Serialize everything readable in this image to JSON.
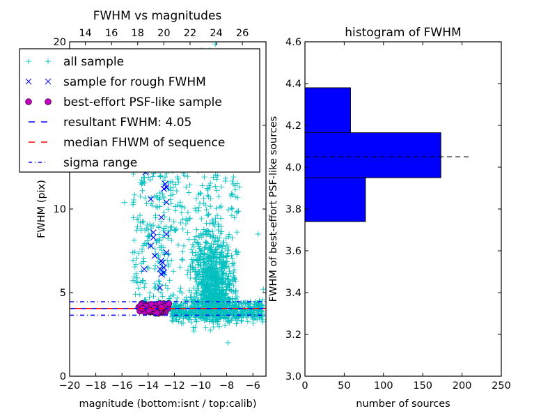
{
  "chart_data": [
    {
      "type": "scatter",
      "title": "FWHM vs magnitudes",
      "xlabel": "magnitude (bottom:isnt / top:calib)",
      "ylabel": "FWHM (pix)",
      "xlim": [
        -20,
        -5
      ],
      "ylim": [
        0,
        20
      ],
      "xticks": [
        "−20",
        "−18",
        "−16",
        "−14",
        "−12",
        "−10",
        "−8",
        "−6"
      ],
      "xtick_values": [
        -20,
        -18,
        -16,
        -14,
        -12,
        -10,
        -8,
        -6
      ],
      "yticks": [
        "0",
        "5",
        "10",
        "15",
        "20"
      ],
      "ytick_values": [
        0,
        5,
        10,
        15,
        20
      ],
      "top_axis": {
        "offset": 32.8,
        "ticks": [
          "14",
          "16",
          "18",
          "20",
          "22",
          "24",
          "26"
        ],
        "tick_values": [
          14,
          16,
          18,
          20,
          22,
          24,
          26
        ]
      },
      "grid": false,
      "legend": {
        "placement": "upper-left",
        "entries": [
          {
            "label": "all sample",
            "marker": "plus",
            "color": "#00bfbf"
          },
          {
            "label": "sample for rough FWHM",
            "marker": "x",
            "color": "#0000ff"
          },
          {
            "label": "best-effort PSF-like sample",
            "marker": "circle",
            "color": "#bf00bf"
          },
          {
            "label": "resultant FWHM: 4.05",
            "line": "dashed",
            "color": "#0000ff"
          },
          {
            "label": "median FHWM of sequence",
            "line": "dashed",
            "color": "#ff0000"
          },
          {
            "label": "sigma range",
            "line": "dashdot",
            "color": "#0000ff"
          }
        ]
      },
      "hlines": [
        {
          "name": "resultant-fwhm",
          "y": 4.05,
          "style": "dashed",
          "color": "#0000ff"
        },
        {
          "name": "median-fwhm",
          "y": 4.05,
          "style": "dashed",
          "color": "#ff0000"
        },
        {
          "name": "sigma-upper",
          "y": 4.45,
          "style": "dashdot",
          "color": "#0000ff"
        },
        {
          "name": "sigma-lower",
          "y": 3.65,
          "style": "dashdot",
          "color": "#0000ff"
        }
      ],
      "series": [
        {
          "name": "all sample",
          "color": "#00bfbf",
          "clusters": [
            {
              "x_range": [
                -15.2,
                -12.2
              ],
              "y_range": [
                4.5,
                13.5
              ],
              "count": 220
            },
            {
              "x_range": [
                -12.5,
                -7.0
              ],
              "y_range": [
                3.5,
                13.5
              ],
              "count": 260
            },
            {
              "x_range": [
                -11.0,
                -7.2
              ],
              "y_range": [
                3.2,
                9.5
              ],
              "count": 900
            },
            {
              "x_range": [
                -12.2,
                -5.2
              ],
              "y_range": [
                3.0,
                4.5
              ],
              "count": 500
            },
            {
              "x_range": [
                -10.0,
                -8.5
              ],
              "y_range": [
                13.5,
                20.0
              ],
              "count": 40
            }
          ],
          "outliers": [
            [
              -5.6,
              8.5
            ],
            [
              -7.9,
              2.0
            ],
            [
              -10.5,
              2.7
            ],
            [
              -9.6,
              2.9
            ],
            [
              -5.5,
              3.5
            ],
            [
              -6.4,
              4.4
            ],
            [
              -5.2,
              5.2
            ],
            [
              -15.8,
              10.4
            ],
            [
              -7.5,
              11.5
            ],
            [
              -9.3,
              19.5
            ],
            [
              -8.5,
              19.1
            ]
          ]
        },
        {
          "name": "sample for rough FWHM",
          "color": "#0000ff",
          "points": [
            [
              -14.2,
              12.2
            ],
            [
              -12.7,
              11.5
            ],
            [
              -12.6,
              11.3
            ],
            [
              -12.8,
              11.2
            ],
            [
              -13.8,
              10.6
            ],
            [
              -12.6,
              10.4
            ],
            [
              -13.0,
              9.5
            ],
            [
              -13.6,
              8.6
            ],
            [
              -13.6,
              8.3
            ],
            [
              -12.6,
              8.5
            ],
            [
              -13.8,
              7.8
            ],
            [
              -12.6,
              7.4
            ],
            [
              -13.5,
              7.2
            ],
            [
              -13.0,
              6.9
            ],
            [
              -12.9,
              6.8
            ],
            [
              -13.1,
              6.4
            ],
            [
              -12.8,
              6.5
            ],
            [
              -12.8,
              6.2
            ],
            [
              -13.0,
              6.1
            ],
            [
              -14.3,
              6.4
            ],
            [
              -13.1,
              5.3
            ]
          ]
        },
        {
          "name": "best-effort PSF-like sample",
          "color": "#bf00bf",
          "x_range": [
            -14.9,
            -12.4
          ],
          "y_range": [
            3.75,
            4.35
          ],
          "count": 55
        }
      ]
    },
    {
      "type": "bar",
      "orientation": "horizontal",
      "title": "histogram of FWHM",
      "xlabel": "number of sources",
      "ylabel": "FWHM of best-effort PSF-like sources",
      "xlim": [
        0,
        250
      ],
      "ylim": [
        3.0,
        4.6
      ],
      "xticks": [
        "0",
        "50",
        "100",
        "150",
        "200",
        "250"
      ],
      "xtick_values": [
        0,
        50,
        100,
        150,
        200,
        250
      ],
      "yticks": [
        "3.0",
        "3.2",
        "3.4",
        "3.6",
        "3.8",
        "4.0",
        "4.2",
        "4.4",
        "4.6"
      ],
      "ytick_values": [
        3.0,
        3.2,
        3.4,
        3.6,
        3.8,
        4.0,
        4.2,
        4.4,
        4.6
      ],
      "grid": false,
      "bar_color": "#0000ff",
      "bins": [
        {
          "low": 3.74,
          "high": 3.95,
          "count": 77
        },
        {
          "low": 3.95,
          "high": 4.165,
          "count": 173
        },
        {
          "low": 4.165,
          "high": 4.38,
          "count": 58
        }
      ],
      "hline": {
        "y": 4.05,
        "x_end": 210,
        "style": "dashed",
        "color": "#000000"
      }
    }
  ]
}
